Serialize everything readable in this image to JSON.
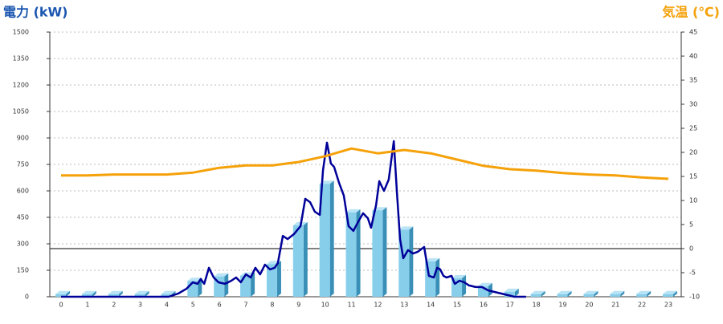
{
  "chart_data": {
    "type": "bar-line",
    "title": "電力 (kW)",
    "y2_title": "気温 (℃)",
    "categories": [
      "0",
      "1",
      "2",
      "3",
      "4",
      "5",
      "6",
      "7",
      "8",
      "9",
      "10",
      "11",
      "12",
      "13",
      "14",
      "15",
      "16",
      "17",
      "18",
      "19",
      "20",
      "21",
      "22",
      "23"
    ],
    "ylim": [
      0,
      1500
    ],
    "yticks": [
      0,
      150,
      300,
      450,
      600,
      750,
      900,
      1050,
      1200,
      1350,
      1500
    ],
    "y2lim": [
      -10,
      45
    ],
    "y2ticks": [
      -10,
      -5,
      0,
      5,
      10,
      15,
      20,
      25,
      30,
      35,
      40,
      45
    ],
    "grid": true,
    "series": [
      {
        "type": "bar",
        "color": "#87ceeb",
        "values": [
          15,
          15,
          15,
          15,
          15,
          90,
          115,
          120,
          185,
          405,
          640,
          478,
          490,
          380,
          200,
          105,
          60,
          28,
          15,
          15,
          15,
          15,
          15,
          15
        ]
      },
      {
        "type": "line",
        "color": "#000099",
        "x": [
          0,
          4.08,
          4.44,
          4.75,
          4.99,
          5.17,
          5.29,
          5.42,
          5.6,
          5.78,
          5.96,
          6.21,
          6.45,
          6.63,
          6.81,
          7.0,
          7.18,
          7.36,
          7.54,
          7.72,
          7.91,
          8.09,
          8.21,
          8.4,
          8.58,
          8.82,
          9.07,
          9.25,
          9.43,
          9.61,
          9.8,
          9.92,
          10.07,
          10.22,
          10.34,
          10.53,
          10.71,
          10.89,
          11.07,
          11.26,
          11.44,
          11.62,
          11.74,
          11.93,
          12.05,
          12.23,
          12.41,
          12.6,
          12.72,
          12.84,
          12.96,
          13.14,
          13.33,
          13.51,
          13.75,
          13.93,
          14.12,
          14.24,
          14.36,
          14.48,
          14.6,
          14.79,
          14.91,
          15.09,
          15.27,
          15.45,
          15.7,
          15.94,
          16.18,
          16.43,
          16.67,
          16.92,
          17.16,
          17.61
        ],
        "values": [
          0,
          0,
          18,
          45,
          82,
          73,
          100,
          73,
          164,
          109,
          82,
          73,
          91,
          109,
          82,
          127,
          109,
          164,
          127,
          182,
          155,
          164,
          191,
          345,
          327,
          355,
          400,
          555,
          536,
          482,
          464,
          718,
          873,
          755,
          736,
          645,
          573,
          400,
          373,
          427,
          473,
          445,
          391,
          518,
          655,
          600,
          664,
          882,
          591,
          327,
          218,
          264,
          245,
          255,
          282,
          118,
          109,
          164,
          155,
          118,
          109,
          118,
          73,
          91,
          82,
          64,
          55,
          55,
          36,
          27,
          18,
          9,
          0,
          0
        ]
      },
      {
        "type": "line",
        "axis": "y2",
        "color": "#f5a10a",
        "values": [
          15.2,
          15.2,
          15.4,
          15.4,
          15.4,
          15.8,
          16.8,
          17.3,
          17.3,
          18.0,
          19.2,
          20.8,
          19.8,
          20.5,
          19.8,
          18.5,
          17.2,
          16.5,
          16.2,
          15.7,
          15.4,
          15.2,
          14.8,
          14.5
        ]
      }
    ]
  }
}
